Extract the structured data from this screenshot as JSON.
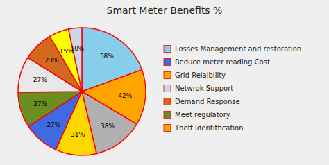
{
  "chart_data": {
    "type": "pie",
    "title": "Smart Meter Benefits %",
    "values": [
      58,
      42,
      38,
      31,
      27,
      27,
      27,
      23,
      15,
      10
    ],
    "value_labels": [
      "58%",
      "42%",
      "38%",
      "31%",
      "27%",
      "27%",
      "27%",
      "23%",
      "15%",
      "10%"
    ],
    "colors": [
      "#87CEEB",
      "#FFA500",
      "#B0B0B0",
      "#FFD700",
      "#4169E1",
      "#6B8E23",
      "#E8E8E8",
      "#D2691E",
      "#FFFF00",
      "#C8D8E8"
    ],
    "data_labels": true,
    "legend": "right",
    "legend_entries": [
      {
        "name": "Losses Management and restoration",
        "color": "#87CEEB"
      },
      {
        "name": "Reduce meter reading Cost",
        "color": "#4169E1"
      },
      {
        "name": "Grid Relaibility",
        "color": "#FFA500"
      },
      {
        "name": "Netwrok Support",
        "color": "#C8D8E8"
      },
      {
        "name": "Demand Response",
        "color": "#D2691E"
      },
      {
        "name": "Meet regulatory",
        "color": "#6B8E23"
      },
      {
        "name": "Theft Identitfication",
        "color": "#FFA500"
      }
    ],
    "edge_color": "red",
    "background": "#EFEFEF"
  }
}
